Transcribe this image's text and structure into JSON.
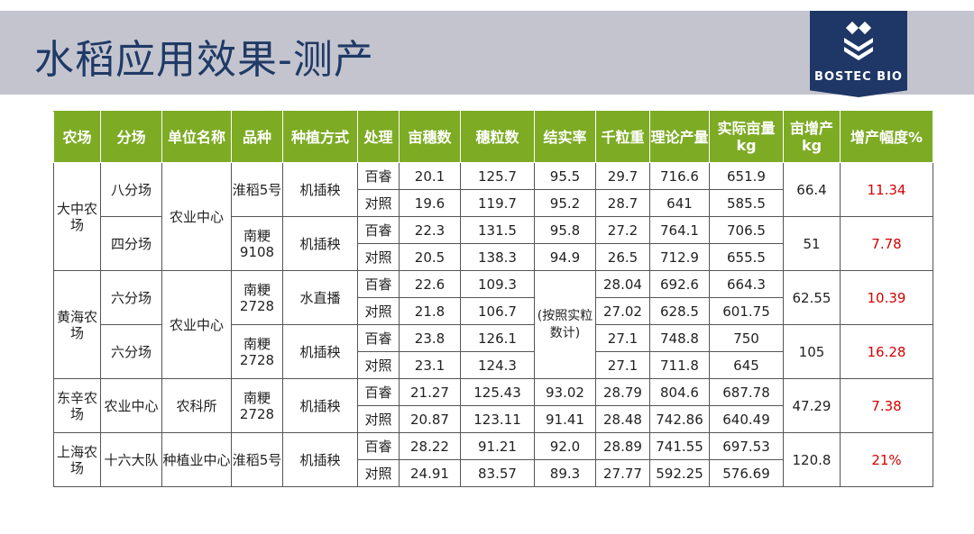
{
  "title": "水稻应用效果-测产",
  "logo": {
    "text": "BOSTEC BIO",
    "icon": "leaf-logo-icon"
  },
  "colors": {
    "header_bg": "#7dab24",
    "title_color": "#1f3a66",
    "logo_bg": "#1f3766",
    "increase_pct": "#d40000",
    "title_bar_bg": "#c3c4ce"
  },
  "headers": [
    "农场",
    "分场",
    "单位名称",
    "品种",
    "种植方式",
    "处理",
    "亩穗数",
    "穗粒数",
    "结实率",
    "千粒重",
    "理论产量",
    "实际亩量kg",
    "亩增产kg",
    "增产幅度%"
  ],
  "farms": [
    {
      "farm": "大中农场",
      "unit": "农业中心",
      "groups": [
        {
          "branch": "八分场",
          "variety": "淮稻5号",
          "method": "机插秧",
          "inc_kg": "66.4",
          "inc_pct": "11.34",
          "rows": [
            {
              "treat": "百睿",
              "panicles": "20.1",
              "grains": "125.7",
              "seed_set": "95.5",
              "kgw": "29.7",
              "theory": "716.6",
              "actual": "651.9"
            },
            {
              "treat": "对照",
              "panicles": "19.6",
              "grains": "119.7",
              "seed_set": "95.2",
              "kgw": "28.7",
              "theory": "641",
              "actual": "585.5"
            }
          ]
        },
        {
          "branch": "四分场",
          "variety": "南粳9108",
          "method": "机插秧",
          "inc_kg": "51",
          "inc_pct": "7.78",
          "rows": [
            {
              "treat": "百睿",
              "panicles": "22.3",
              "grains": "131.5",
              "seed_set": "95.8",
              "kgw": "27.2",
              "theory": "764.1",
              "actual": "706.5"
            },
            {
              "treat": "对照",
              "panicles": "20.5",
              "grains": "138.3",
              "seed_set": "94.9",
              "kgw": "26.5",
              "theory": "712.9",
              "actual": "655.5"
            }
          ]
        }
      ]
    },
    {
      "farm": "黄海农场",
      "unit": "农业中心",
      "seed_set_note": "(按照实粒数计)",
      "groups": [
        {
          "branch": "六分场",
          "variety": "南粳2728",
          "method": "水直播",
          "inc_kg": "62.55",
          "inc_pct": "10.39",
          "rows": [
            {
              "treat": "百睿",
              "panicles": "22.6",
              "grains": "109.3",
              "kgw": "28.04",
              "theory": "692.6",
              "actual": "664.3"
            },
            {
              "treat": "对照",
              "panicles": "21.8",
              "grains": "106.7",
              "kgw": "27.02",
              "theory": "628.5",
              "actual": "601.75"
            }
          ]
        },
        {
          "branch": "六分场",
          "variety": "南粳2728",
          "method": "机插秧",
          "inc_kg": "105",
          "inc_pct": "16.28",
          "rows": [
            {
              "treat": "百睿",
              "panicles": "23.8",
              "grains": "126.1",
              "kgw": "27.1",
              "theory": "748.8",
              "actual": "750"
            },
            {
              "treat": "对照",
              "panicles": "23.1",
              "grains": "124.3",
              "kgw": "27.1",
              "theory": "711.8",
              "actual": "645"
            }
          ]
        }
      ]
    },
    {
      "farm": "东辛农场",
      "unit": "农科所",
      "groups": [
        {
          "branch": "农业中心",
          "variety": "南粳2728",
          "method": "机插秧",
          "inc_kg": "47.29",
          "inc_pct": "7.38",
          "rows": [
            {
              "treat": "百睿",
              "panicles": "21.27",
              "grains": "125.43",
              "seed_set": "93.02",
              "kgw": "28.79",
              "theory": "804.6",
              "actual": "687.78"
            },
            {
              "treat": "对照",
              "panicles": "20.87",
              "grains": "123.11",
              "seed_set": "91.41",
              "kgw": "28.48",
              "theory": "742.86",
              "actual": "640.49"
            }
          ]
        }
      ]
    },
    {
      "farm": "上海农场",
      "unit": "种植业中心",
      "groups": [
        {
          "branch": "十六大队",
          "variety": "淮稻5号",
          "method": "机插秧",
          "inc_kg": "120.8",
          "inc_pct": "21%",
          "rows": [
            {
              "treat": "百睿",
              "panicles": "28.22",
              "grains": "91.21",
              "seed_set": "92.0",
              "kgw": "28.89",
              "theory": "741.55",
              "actual": "697.53"
            },
            {
              "treat": "对照",
              "panicles": "24.91",
              "grains": "83.57",
              "seed_set": "89.3",
              "kgw": "27.77",
              "theory": "592.25",
              "actual": "576.69"
            }
          ]
        }
      ]
    }
  ]
}
